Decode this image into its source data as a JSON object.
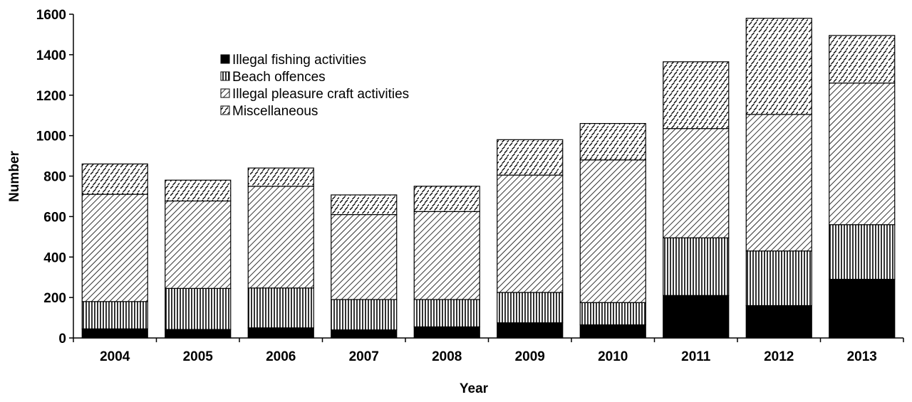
{
  "chart_data": {
    "type": "bar",
    "stacked": true,
    "xlabel": "Year",
    "ylabel": "Number",
    "ylim": [
      0,
      1600
    ],
    "yticks": [
      0,
      200,
      400,
      600,
      800,
      1000,
      1200,
      1400,
      1600
    ],
    "grid": false,
    "legend_position": "top-left",
    "categories": [
      "2004",
      "2005",
      "2006",
      "2007",
      "2008",
      "2009",
      "2010",
      "2011",
      "2012",
      "2013"
    ],
    "series": [
      {
        "name": "Illegal fishing activities",
        "pattern": "solid",
        "values": [
          45,
          42,
          50,
          40,
          55,
          75,
          65,
          210,
          160,
          290
        ]
      },
      {
        "name": "Beach offences",
        "pattern": "vertical-lines",
        "values": [
          135,
          203,
          197,
          150,
          135,
          150,
          110,
          285,
          270,
          270
        ]
      },
      {
        "name": "Illegal pleasure craft activities",
        "pattern": "dense-diagonal",
        "values": [
          530,
          432,
          503,
          420,
          435,
          580,
          705,
          540,
          675,
          700
        ]
      },
      {
        "name": "Miscellaneous",
        "pattern": "dashed-diagonal",
        "values": [
          150,
          103,
          90,
          97,
          125,
          175,
          180,
          330,
          475,
          235
        ]
      }
    ]
  }
}
